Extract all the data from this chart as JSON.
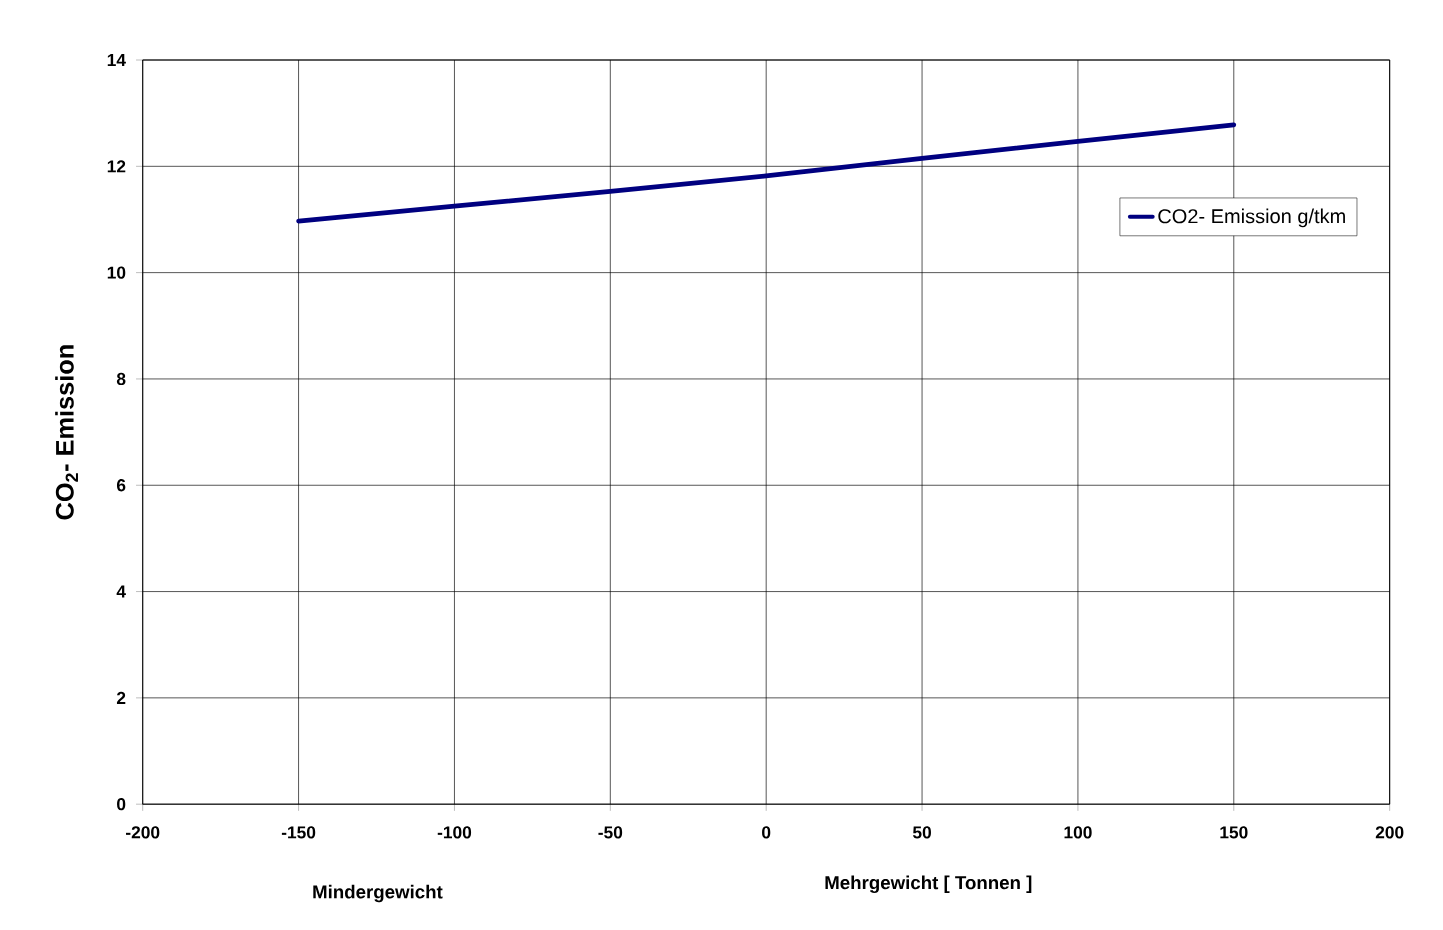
{
  "chart_data": {
    "type": "line",
    "ylabel": "CO$_{2}$- Emission",
    "xlabel": "Mehrgewicht  [ Tonnen ]",
    "annotations": [
      "Mindergewicht"
    ],
    "x": [
      -150,
      -100,
      -50,
      0,
      50,
      100,
      150
    ],
    "series": [
      {
        "name": "CO2- Emission g/tkm",
        "color": "#000080",
        "values": [
          10.97,
          11.25,
          11.53,
          11.82,
          12.15,
          12.47,
          12.78
        ]
      }
    ],
    "xlim": [
      -200,
      200
    ],
    "xticks": [
      -200,
      -150,
      -100,
      -50,
      0,
      50,
      100,
      150,
      200
    ],
    "ylim": [
      0,
      14
    ],
    "yticks": [
      0,
      2,
      4,
      6,
      8,
      10,
      12,
      14
    ],
    "grid": true,
    "legend": "top right",
    "marker": "none",
    "line_style": "solid"
  }
}
